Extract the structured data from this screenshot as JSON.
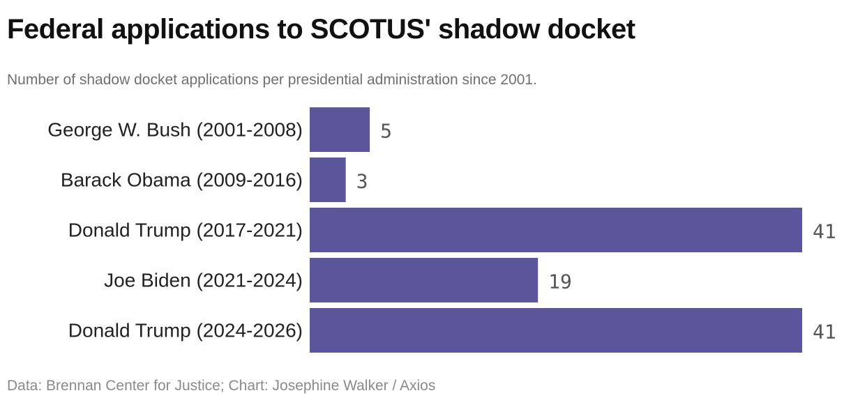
{
  "header": {
    "title": "Federal applications to SCOTUS' shadow docket",
    "subtitle": "Number of shadow docket applications per presidential administration since 2001."
  },
  "footer": {
    "source": "Data: Brennan Center for Justice; Chart: Josephine Walker / Axios"
  },
  "colors": {
    "bar": "#5b559b"
  },
  "chart_data": {
    "type": "bar",
    "orientation": "horizontal",
    "title": "Federal applications to SCOTUS' shadow docket",
    "subtitle": "Number of shadow docket applications per presidential administration since 2001.",
    "categories": [
      "George W. Bush (2001-2008)",
      "Barack Obama (2009-2016)",
      "Donald Trump (2017-2021)",
      "Joe Biden (2021-2024)",
      "Donald Trump (2024-2026)"
    ],
    "values": [
      5,
      3,
      41,
      19,
      41
    ],
    "value_labels": [
      "5",
      "3",
      "41",
      "19",
      "41"
    ],
    "xlim": [
      0,
      41
    ],
    "grid": false,
    "legend": "none",
    "data_labels": "outside-end"
  }
}
